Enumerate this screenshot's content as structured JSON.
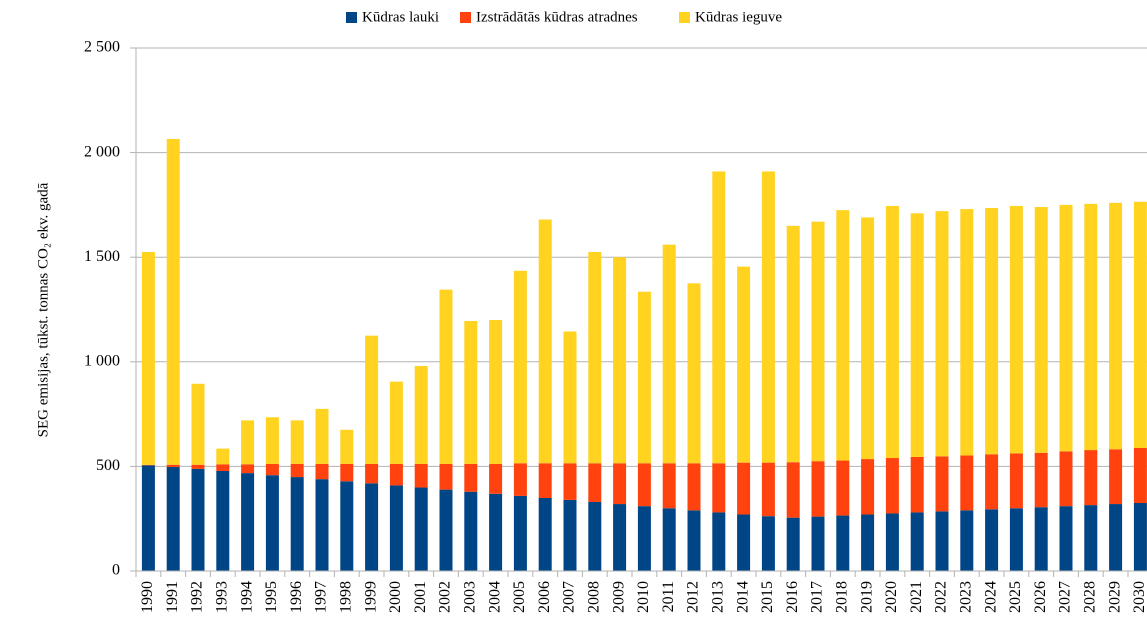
{
  "chart_data": {
    "type": "stacked_bar",
    "y_label": "SEG emisijas, tūkst. tonnas CO₂ ekv. gadā",
    "categories": [
      "1990",
      "1991",
      "1992",
      "1993",
      "1994",
      "1995",
      "1996",
      "1997",
      "1998",
      "1999",
      "2000",
      "2001",
      "2002",
      "2003",
      "2004",
      "2005",
      "2006",
      "2007",
      "2008",
      "2009",
      "2010",
      "2011",
      "2012",
      "2013",
      "2014",
      "2015",
      "2016",
      "2017",
      "2018",
      "2019",
      "2020",
      "2021",
      "2022",
      "2023",
      "2024",
      "2025",
      "2026",
      "2027",
      "2028",
      "2029",
      "2030"
    ],
    "series": [
      {
        "name": "Kūdras lauki",
        "color": "#004586",
        "values": [
          505,
          497,
          488,
          478,
          468,
          458,
          449,
          439,
          429,
          419,
          409,
          399,
          389,
          379,
          369,
          359,
          349,
          340,
          330,
          320,
          310,
          300,
          290,
          280,
          270,
          262,
          255,
          260,
          265,
          270,
          275,
          280,
          285,
          290,
          295,
          300,
          305,
          310,
          315,
          320,
          325
        ]
      },
      {
        "name": "Izstrādātās kūdras atradnes",
        "color": "#ff420e",
        "values": [
          2,
          11,
          20,
          32,
          42,
          54,
          63,
          73,
          83,
          93,
          103,
          113,
          123,
          133,
          143,
          156,
          166,
          175,
          185,
          195,
          205,
          215,
          225,
          235,
          248,
          256,
          265,
          265,
          263,
          265,
          265,
          265,
          263,
          262,
          263,
          262,
          260,
          262,
          263,
          262,
          263
        ]
      },
      {
        "name": "Kūdras ieguve",
        "color": "#ffd320",
        "values": [
          1018,
          1557,
          387,
          75,
          210,
          223,
          208,
          263,
          163,
          613,
          393,
          468,
          833,
          683,
          688,
          920,
          1165,
          630,
          1010,
          985,
          820,
          1045,
          860,
          1395,
          937,
          1392,
          1130,
          1145,
          1197,
          1155,
          1205,
          1165,
          1172,
          1178,
          1177,
          1183,
          1175,
          1178,
          1177,
          1178,
          1177
        ]
      }
    ],
    "ylim": [
      0,
      2500
    ],
    "yticks": [
      0,
      500,
      {
        "value": 1000,
        "label": "1 000"
      },
      {
        "value": 1500,
        "label": "1 500"
      },
      {
        "value": 2000,
        "label": "2 000"
      },
      {
        "value": 2500,
        "label": "2 500"
      }
    ],
    "grid": true
  }
}
